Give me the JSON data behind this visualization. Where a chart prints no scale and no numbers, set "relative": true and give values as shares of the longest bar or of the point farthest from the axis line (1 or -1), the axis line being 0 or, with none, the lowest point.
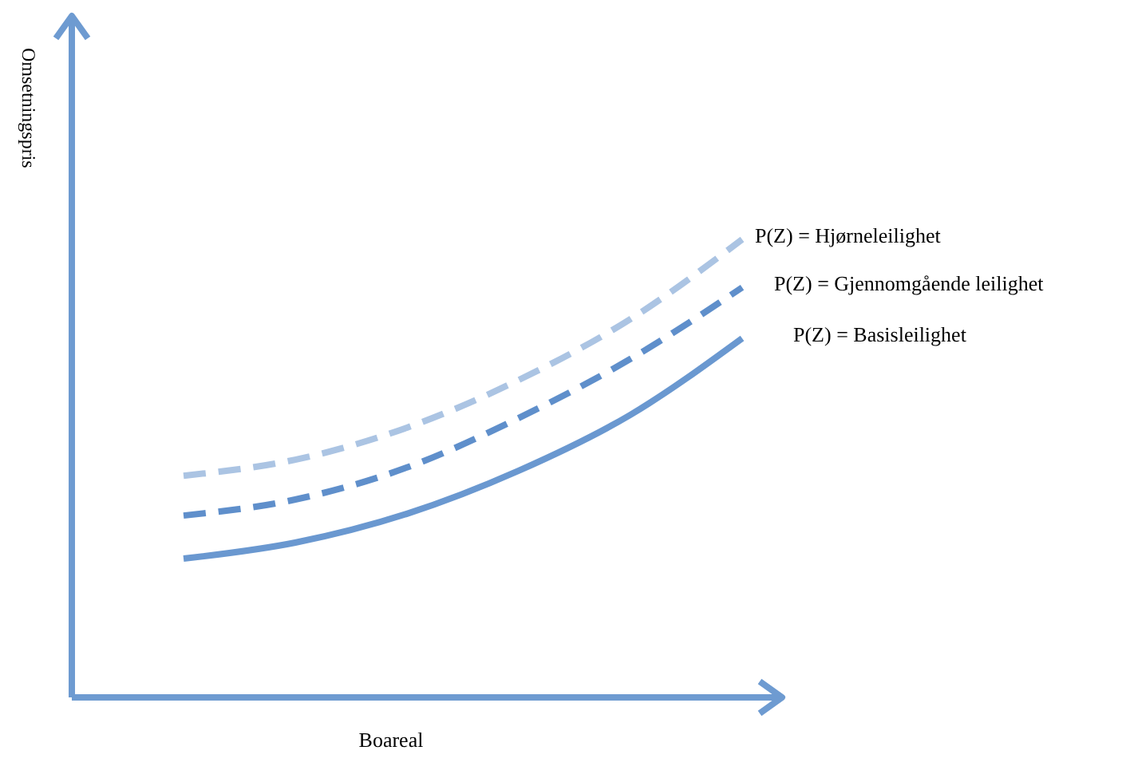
{
  "chart_data": {
    "type": "line",
    "xlabel": "Boareal",
    "ylabel": "Omsetningspris",
    "relative": true,
    "legend": false,
    "grid": false,
    "marker": "none",
    "categories": [
      null,
      null,
      null,
      null,
      null,
      null
    ],
    "series": [
      {
        "name": "P(Z) = Hjørneleilighet",
        "color": "#abc4e3",
        "line_style": "dashed",
        "values": [
          0.484,
          0.519,
          0.589,
          0.693,
          0.826,
          1
        ]
      },
      {
        "name": "P(Z) = Gjennomgående leilighet",
        "color": "#5f8fcb",
        "line_style": "dashed",
        "values": [
          0.397,
          0.432,
          0.502,
          0.61,
          0.739,
          0.895
        ]
      },
      {
        "name": "P(Z) = Basisleilighet",
        "color": "#6a98d0",
        "line_style": "solid",
        "values": [
          0.303,
          0.338,
          0.401,
          0.495,
          0.617,
          0.784
        ]
      }
    ]
  }
}
